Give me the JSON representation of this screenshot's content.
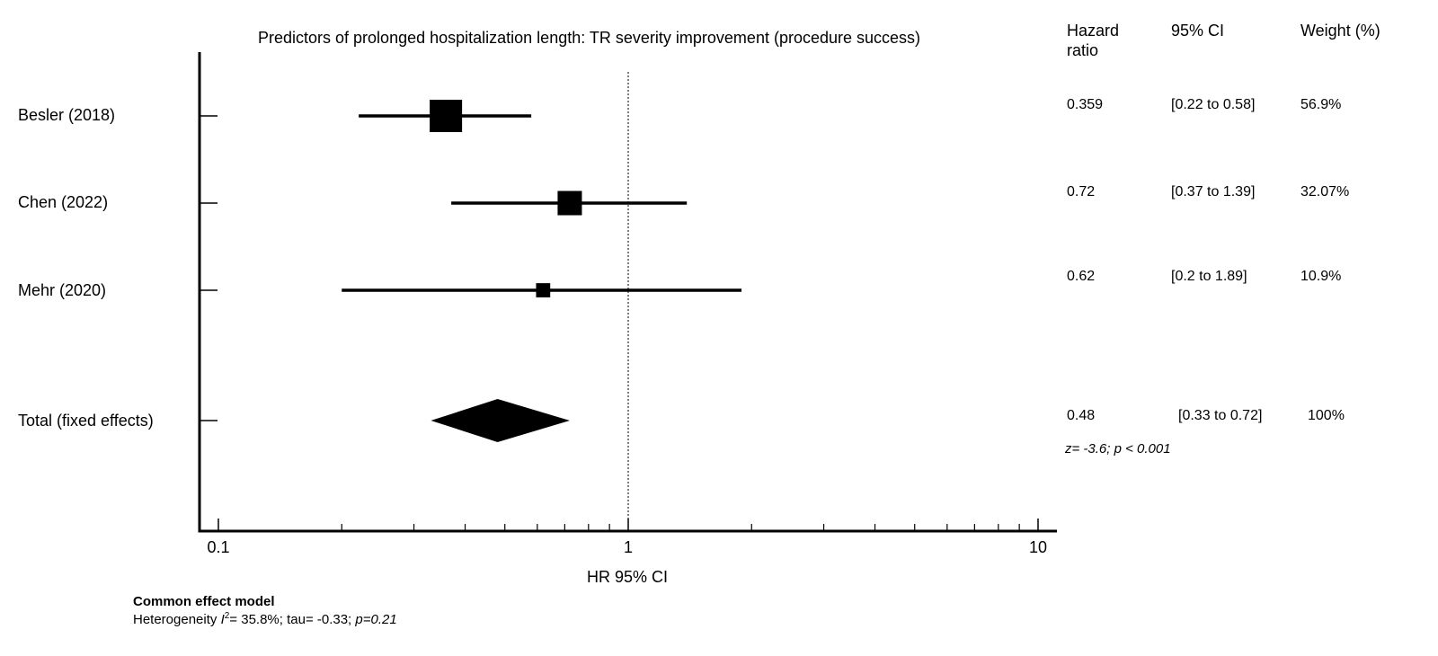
{
  "chart_data": {
    "type": "forest",
    "title": "Predictors of prolonged hospitalization length: TR severity improvement (procedure success)",
    "xlabel": "HR 95% CI",
    "x_scale": "log",
    "xlim": [
      0.1,
      10
    ],
    "x_tick_labels": [
      "0.1",
      "1",
      "10"
    ],
    "x_minor_ticks": [
      0.2,
      0.3,
      0.4,
      0.5,
      0.6,
      0.7,
      0.8,
      0.9,
      2,
      3,
      4,
      5,
      6,
      7,
      8,
      9
    ],
    "reference_line": 1,
    "column_headers": {
      "hr": "Hazard\nratio",
      "hr_line1": "Hazard",
      "hr_line2": "ratio",
      "ci": "95% CI",
      "weight": "Weight (%)"
    },
    "studies": [
      {
        "label": "Besler (2018)",
        "hr": 0.359,
        "ci_low": 0.22,
        "ci_high": 0.58,
        "hr_text": "0.359",
        "ci_text": "[0.22 to 0.58]",
        "weight": 56.9,
        "weight_text": "56.9%"
      },
      {
        "label": "Chen (2022)",
        "hr": 0.72,
        "ci_low": 0.37,
        "ci_high": 1.39,
        "hr_text": "0.72",
        "ci_text": "[0.37 to 1.39]",
        "weight": 32.07,
        "weight_text": "32.07%"
      },
      {
        "label": "Mehr (2020)",
        "hr": 0.62,
        "ci_low": 0.2,
        "ci_high": 1.89,
        "hr_text": "0.62",
        "ci_text": "[0.2 to 1.89]",
        "weight": 10.9,
        "weight_text": "10.9%"
      }
    ],
    "total": {
      "label": "Total (fixed effects)",
      "hr": 0.48,
      "ci_low": 0.33,
      "ci_high": 0.72,
      "hr_text": "0.48",
      "ci_text": "[0.33 to 0.72]",
      "weight_text": "100%",
      "test_text": "z= -3.6; p < 0.001"
    }
  },
  "footer": {
    "model": "Common effect model",
    "heterogeneity_prefix": "Heterogeneity ",
    "i2_symbol": "I",
    "i2_sup": "2",
    "heterogeneity_mid": "= 35.8%; tau= -0.33; ",
    "p_text": "p=0.21"
  }
}
